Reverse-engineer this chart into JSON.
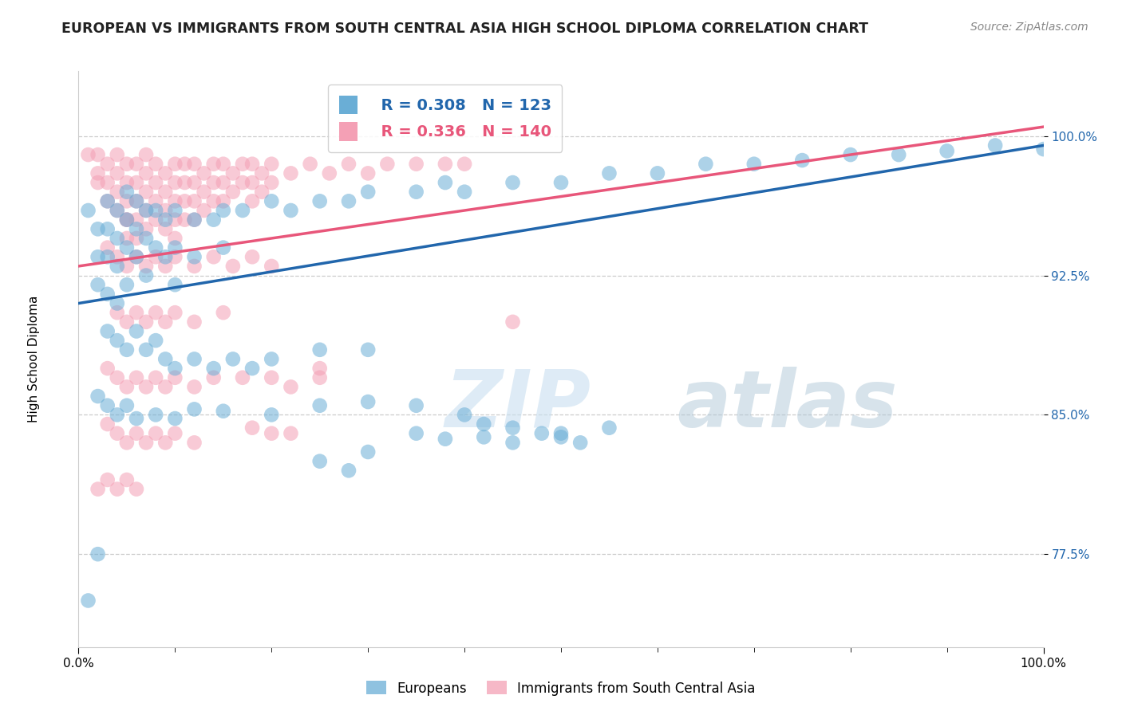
{
  "title": "EUROPEAN VS IMMIGRANTS FROM SOUTH CENTRAL ASIA HIGH SCHOOL DIPLOMA CORRELATION CHART",
  "source_text": "Source: ZipAtlas.com",
  "xlabel": "",
  "ylabel": "High School Diploma",
  "watermark_zip": "ZIP",
  "watermark_atlas": "atlas",
  "legend_blue_label": "Europeans",
  "legend_pink_label": "Immigrants from South Central Asia",
  "blue_R": 0.308,
  "blue_N": 123,
  "pink_R": 0.336,
  "pink_N": 140,
  "xlim": [
    0.0,
    1.0
  ],
  "ylim": [
    0.725,
    1.035
  ],
  "yticks": [
    0.775,
    0.85,
    0.925,
    1.0
  ],
  "ytick_labels": [
    "77.5%",
    "85.0%",
    "92.5%",
    "100.0%"
  ],
  "xtick_labels": [
    "0.0%",
    "100.0%"
  ],
  "xticks": [
    0.0,
    1.0
  ],
  "blue_color": "#6aaed6",
  "pink_color": "#f4a0b5",
  "blue_line_color": "#2166ac",
  "pink_line_color": "#e8567a",
  "background_color": "#ffffff",
  "title_fontsize": 12.5,
  "axis_label_fontsize": 11,
  "tick_fontsize": 11,
  "blue_trend_x": [
    0.0,
    1.0
  ],
  "blue_trend_y": [
    0.91,
    0.995
  ],
  "pink_trend_x": [
    0.0,
    1.0
  ],
  "pink_trend_y": [
    0.93,
    1.005
  ],
  "blue_scatter": [
    [
      0.01,
      0.96
    ],
    [
      0.02,
      0.95
    ],
    [
      0.02,
      0.935
    ],
    [
      0.02,
      0.92
    ],
    [
      0.03,
      0.965
    ],
    [
      0.03,
      0.95
    ],
    [
      0.03,
      0.935
    ],
    [
      0.03,
      0.915
    ],
    [
      0.04,
      0.96
    ],
    [
      0.04,
      0.945
    ],
    [
      0.04,
      0.93
    ],
    [
      0.04,
      0.91
    ],
    [
      0.05,
      0.97
    ],
    [
      0.05,
      0.955
    ],
    [
      0.05,
      0.94
    ],
    [
      0.05,
      0.92
    ],
    [
      0.06,
      0.965
    ],
    [
      0.06,
      0.95
    ],
    [
      0.06,
      0.935
    ],
    [
      0.07,
      0.96
    ],
    [
      0.07,
      0.945
    ],
    [
      0.07,
      0.925
    ],
    [
      0.08,
      0.96
    ],
    [
      0.08,
      0.94
    ],
    [
      0.09,
      0.955
    ],
    [
      0.09,
      0.935
    ],
    [
      0.1,
      0.96
    ],
    [
      0.1,
      0.94
    ],
    [
      0.1,
      0.92
    ],
    [
      0.12,
      0.955
    ],
    [
      0.12,
      0.935
    ],
    [
      0.14,
      0.955
    ],
    [
      0.15,
      0.96
    ],
    [
      0.15,
      0.94
    ],
    [
      0.17,
      0.96
    ],
    [
      0.2,
      0.965
    ],
    [
      0.22,
      0.96
    ],
    [
      0.25,
      0.965
    ],
    [
      0.28,
      0.965
    ],
    [
      0.3,
      0.97
    ],
    [
      0.35,
      0.97
    ],
    [
      0.38,
      0.975
    ],
    [
      0.4,
      0.97
    ],
    [
      0.45,
      0.975
    ],
    [
      0.5,
      0.975
    ],
    [
      0.55,
      0.98
    ],
    [
      0.6,
      0.98
    ],
    [
      0.65,
      0.985
    ],
    [
      0.7,
      0.985
    ],
    [
      0.75,
      0.987
    ],
    [
      0.8,
      0.99
    ],
    [
      0.85,
      0.99
    ],
    [
      0.9,
      0.992
    ],
    [
      0.95,
      0.995
    ],
    [
      1.0,
      0.993
    ],
    [
      0.03,
      0.895
    ],
    [
      0.04,
      0.89
    ],
    [
      0.05,
      0.885
    ],
    [
      0.06,
      0.895
    ],
    [
      0.07,
      0.885
    ],
    [
      0.08,
      0.89
    ],
    [
      0.09,
      0.88
    ],
    [
      0.1,
      0.875
    ],
    [
      0.12,
      0.88
    ],
    [
      0.14,
      0.875
    ],
    [
      0.16,
      0.88
    ],
    [
      0.18,
      0.875
    ],
    [
      0.2,
      0.88
    ],
    [
      0.25,
      0.885
    ],
    [
      0.3,
      0.885
    ],
    [
      0.02,
      0.86
    ],
    [
      0.03,
      0.855
    ],
    [
      0.04,
      0.85
    ],
    [
      0.05,
      0.855
    ],
    [
      0.06,
      0.848
    ],
    [
      0.08,
      0.85
    ],
    [
      0.1,
      0.848
    ],
    [
      0.12,
      0.853
    ],
    [
      0.15,
      0.852
    ],
    [
      0.2,
      0.85
    ],
    [
      0.25,
      0.855
    ],
    [
      0.3,
      0.857
    ],
    [
      0.35,
      0.855
    ],
    [
      0.01,
      0.75
    ],
    [
      0.02,
      0.775
    ],
    [
      0.25,
      0.825
    ],
    [
      0.28,
      0.82
    ],
    [
      0.3,
      0.83
    ],
    [
      0.35,
      0.84
    ],
    [
      0.38,
      0.837
    ],
    [
      0.42,
      0.838
    ],
    [
      0.45,
      0.835
    ],
    [
      0.5,
      0.84
    ],
    [
      0.55,
      0.843
    ],
    [
      0.4,
      0.85
    ],
    [
      0.42,
      0.845
    ],
    [
      0.45,
      0.843
    ],
    [
      0.48,
      0.84
    ],
    [
      0.5,
      0.838
    ],
    [
      0.52,
      0.835
    ]
  ],
  "pink_scatter": [
    [
      0.01,
      0.99
    ],
    [
      0.02,
      0.99
    ],
    [
      0.02,
      0.98
    ],
    [
      0.02,
      0.975
    ],
    [
      0.03,
      0.985
    ],
    [
      0.03,
      0.975
    ],
    [
      0.03,
      0.965
    ],
    [
      0.04,
      0.99
    ],
    [
      0.04,
      0.98
    ],
    [
      0.04,
      0.97
    ],
    [
      0.04,
      0.96
    ],
    [
      0.05,
      0.985
    ],
    [
      0.05,
      0.975
    ],
    [
      0.05,
      0.965
    ],
    [
      0.05,
      0.955
    ],
    [
      0.06,
      0.985
    ],
    [
      0.06,
      0.975
    ],
    [
      0.06,
      0.965
    ],
    [
      0.06,
      0.955
    ],
    [
      0.06,
      0.945
    ],
    [
      0.07,
      0.99
    ],
    [
      0.07,
      0.98
    ],
    [
      0.07,
      0.97
    ],
    [
      0.07,
      0.96
    ],
    [
      0.07,
      0.95
    ],
    [
      0.08,
      0.985
    ],
    [
      0.08,
      0.975
    ],
    [
      0.08,
      0.965
    ],
    [
      0.08,
      0.955
    ],
    [
      0.09,
      0.98
    ],
    [
      0.09,
      0.97
    ],
    [
      0.09,
      0.96
    ],
    [
      0.09,
      0.95
    ],
    [
      0.1,
      0.985
    ],
    [
      0.1,
      0.975
    ],
    [
      0.1,
      0.965
    ],
    [
      0.1,
      0.955
    ],
    [
      0.1,
      0.945
    ],
    [
      0.11,
      0.985
    ],
    [
      0.11,
      0.975
    ],
    [
      0.11,
      0.965
    ],
    [
      0.11,
      0.955
    ],
    [
      0.12,
      0.985
    ],
    [
      0.12,
      0.975
    ],
    [
      0.12,
      0.965
    ],
    [
      0.12,
      0.955
    ],
    [
      0.13,
      0.98
    ],
    [
      0.13,
      0.97
    ],
    [
      0.13,
      0.96
    ],
    [
      0.14,
      0.985
    ],
    [
      0.14,
      0.975
    ],
    [
      0.14,
      0.965
    ],
    [
      0.15,
      0.985
    ],
    [
      0.15,
      0.975
    ],
    [
      0.15,
      0.965
    ],
    [
      0.16,
      0.98
    ],
    [
      0.16,
      0.97
    ],
    [
      0.17,
      0.985
    ],
    [
      0.17,
      0.975
    ],
    [
      0.18,
      0.985
    ],
    [
      0.18,
      0.975
    ],
    [
      0.18,
      0.965
    ],
    [
      0.19,
      0.98
    ],
    [
      0.19,
      0.97
    ],
    [
      0.2,
      0.985
    ],
    [
      0.2,
      0.975
    ],
    [
      0.22,
      0.98
    ],
    [
      0.24,
      0.985
    ],
    [
      0.26,
      0.98
    ],
    [
      0.28,
      0.985
    ],
    [
      0.3,
      0.98
    ],
    [
      0.32,
      0.985
    ],
    [
      0.35,
      0.985
    ],
    [
      0.38,
      0.985
    ],
    [
      0.4,
      0.985
    ],
    [
      0.03,
      0.94
    ],
    [
      0.04,
      0.935
    ],
    [
      0.05,
      0.93
    ],
    [
      0.06,
      0.935
    ],
    [
      0.07,
      0.93
    ],
    [
      0.08,
      0.935
    ],
    [
      0.09,
      0.93
    ],
    [
      0.1,
      0.935
    ],
    [
      0.12,
      0.93
    ],
    [
      0.14,
      0.935
    ],
    [
      0.16,
      0.93
    ],
    [
      0.18,
      0.935
    ],
    [
      0.2,
      0.93
    ],
    [
      0.04,
      0.905
    ],
    [
      0.05,
      0.9
    ],
    [
      0.06,
      0.905
    ],
    [
      0.07,
      0.9
    ],
    [
      0.08,
      0.905
    ],
    [
      0.09,
      0.9
    ],
    [
      0.1,
      0.905
    ],
    [
      0.12,
      0.9
    ],
    [
      0.15,
      0.905
    ],
    [
      0.03,
      0.875
    ],
    [
      0.04,
      0.87
    ],
    [
      0.05,
      0.865
    ],
    [
      0.06,
      0.87
    ],
    [
      0.07,
      0.865
    ],
    [
      0.08,
      0.87
    ],
    [
      0.09,
      0.865
    ],
    [
      0.1,
      0.87
    ],
    [
      0.12,
      0.865
    ],
    [
      0.14,
      0.87
    ],
    [
      0.03,
      0.845
    ],
    [
      0.04,
      0.84
    ],
    [
      0.05,
      0.835
    ],
    [
      0.06,
      0.84
    ],
    [
      0.07,
      0.835
    ],
    [
      0.08,
      0.84
    ],
    [
      0.09,
      0.835
    ],
    [
      0.1,
      0.84
    ],
    [
      0.12,
      0.835
    ],
    [
      0.02,
      0.81
    ],
    [
      0.03,
      0.815
    ],
    [
      0.04,
      0.81
    ],
    [
      0.05,
      0.815
    ],
    [
      0.06,
      0.81
    ],
    [
      0.17,
      0.87
    ],
    [
      0.2,
      0.87
    ],
    [
      0.25,
      0.875
    ],
    [
      0.18,
      0.843
    ],
    [
      0.2,
      0.84
    ],
    [
      0.22,
      0.865
    ],
    [
      0.05,
      0.955
    ],
    [
      0.05,
      0.945
    ],
    [
      0.22,
      0.84
    ],
    [
      0.25,
      0.87
    ],
    [
      0.45,
      0.9
    ]
  ]
}
